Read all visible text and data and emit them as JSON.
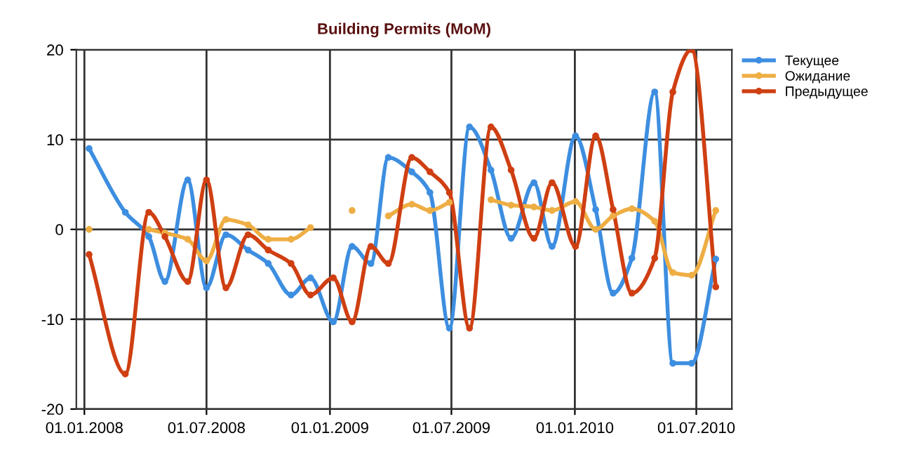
{
  "chart_data": {
    "type": "line",
    "title": "Building Permits (MoM)",
    "x": [
      "2008-01-08",
      "2008-03-02",
      "2008-04-06",
      "2008-04-30",
      "2008-06-03",
      "2008-07-01",
      "2008-07-30",
      "2008-09-01",
      "2008-10-01",
      "2008-11-04",
      "2008-12-03",
      "2009-01-06",
      "2009-02-03",
      "2009-03-03",
      "2009-03-29",
      "2009-05-03",
      "2009-05-30",
      "2009-06-28",
      "2009-07-28",
      "2009-08-29",
      "2009-09-28",
      "2009-11-01",
      "2009-11-28",
      "2010-01-02",
      "2010-02-01",
      "2010-02-27",
      "2010-03-27",
      "2010-04-30",
      "2010-05-27",
      "2010-06-24",
      "2010-07-30"
    ],
    "series": [
      {
        "name": "Текущее",
        "color": "#3d8ee0",
        "values": [
          9.0,
          1.9,
          -0.8,
          -5.8,
          5.5,
          -6.5,
          -0.6,
          -2.3,
          -3.8,
          -7.3,
          -5.4,
          -10.3,
          -1.9,
          -3.8,
          8.0,
          6.4,
          4.1,
          -11.0,
          11.4,
          6.6,
          -1.0,
          5.2,
          -1.9,
          10.4,
          2.2,
          -7.1,
          -3.2,
          15.3,
          -14.9,
          -14.9,
          -3.3
        ]
      },
      {
        "name": "Ожидание",
        "color": "#eeae44",
        "values": [
          0,
          null,
          0,
          -0.4,
          -1.1,
          -3.5,
          1.1,
          0.5,
          -1.1,
          -1.1,
          0.2,
          null,
          2.1,
          null,
          1.5,
          2.8,
          2.1,
          3.0,
          null,
          3.3,
          2.7,
          2.5,
          2.1,
          3.1,
          0,
          1.5,
          2.3,
          0.9,
          -4.8,
          -5.1,
          2.1
        ]
      },
      {
        "name": "Предыдущее",
        "color": "#cf3f12",
        "values": [
          -2.8,
          -16.1,
          1.9,
          -0.8,
          -5.8,
          5.5,
          -6.5,
          -0.6,
          -2.3,
          -3.8,
          -7.3,
          -5.4,
          -10.3,
          -1.9,
          -3.8,
          8.0,
          6.4,
          4.1,
          -11.0,
          11.4,
          6.6,
          -1.0,
          5.2,
          -1.9,
          10.4,
          2.2,
          -7.1,
          -3.2,
          15.3,
          20.0,
          -6.4
        ]
      }
    ],
    "xlim": [
      "2007-12-20",
      "2010-08-23"
    ],
    "xticks": [
      {
        "value": "2008-01-01",
        "label": "01.01.2008"
      },
      {
        "value": "2008-07-01",
        "label": "01.07.2008"
      },
      {
        "value": "2009-01-01",
        "label": "01.01.2009"
      },
      {
        "value": "2009-07-01",
        "label": "01.07.2009"
      },
      {
        "value": "2010-01-01",
        "label": "01.01.2010"
      },
      {
        "value": "2010-07-01",
        "label": "01.07.2010"
      }
    ],
    "ylim": [
      -20,
      20
    ],
    "yticks": [
      -20,
      -10,
      0,
      10,
      20
    ],
    "grid": true,
    "legend": "top right",
    "marker": "circle",
    "line_style": "solid"
  }
}
